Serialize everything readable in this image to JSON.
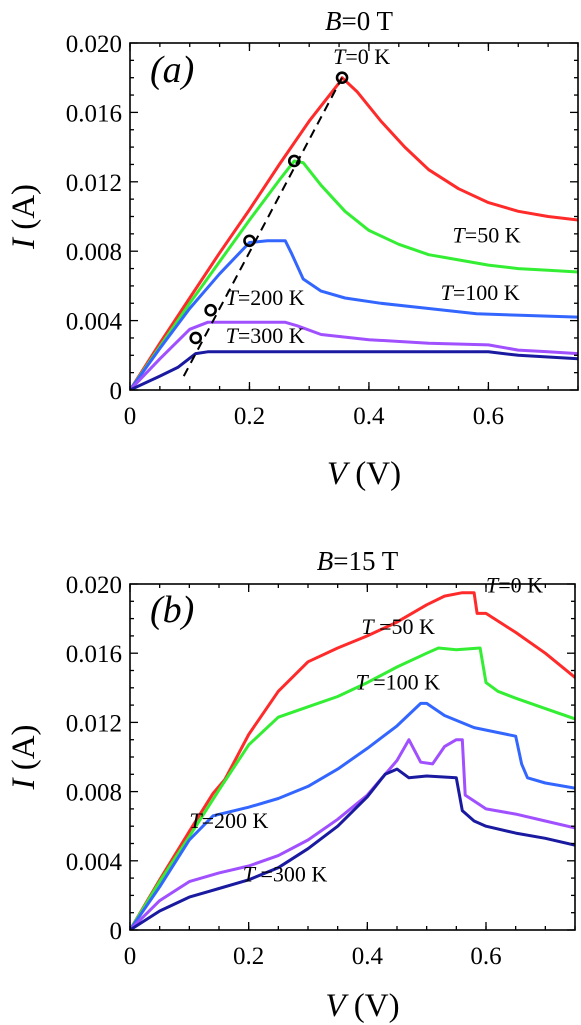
{
  "chart_data": [
    {
      "panel": "(a)",
      "type": "line",
      "title": "B=0 T",
      "title_parts": {
        "symbol": "B",
        "rest": "=0 T"
      },
      "xlabel": "V (V)",
      "xlabel_parts": {
        "symbol": "V",
        "rest": " (V)"
      },
      "ylabel": "I (A)",
      "ylabel_parts": {
        "symbol": "I",
        "rest": " (A)"
      },
      "xlim": [
        0,
        0.75
      ],
      "ylim": [
        0,
        0.02
      ],
      "xticks": [
        0,
        0.2,
        0.4,
        0.6
      ],
      "xtick_labels": [
        "0",
        "0.2",
        "0.4",
        "0.6"
      ],
      "yticks": [
        0,
        0.004,
        0.008,
        0.012,
        0.016,
        0.02
      ],
      "ytick_labels": [
        "0",
        "0.004",
        "0.008",
        "0.012",
        "0.016",
        "0.020"
      ],
      "series": [
        {
          "label": "T=0 K",
          "color": "#ff2a2a",
          "x": [
            0,
            0.05,
            0.1,
            0.15,
            0.2,
            0.25,
            0.3,
            0.35,
            0.355,
            0.38,
            0.42,
            0.46,
            0.5,
            0.55,
            0.6,
            0.65,
            0.7,
            0.75
          ],
          "y": [
            0,
            0.0027,
            0.0053,
            0.0079,
            0.0104,
            0.013,
            0.0155,
            0.0177,
            0.018,
            0.0172,
            0.0155,
            0.014,
            0.0127,
            0.0116,
            0.0108,
            0.0103,
            0.01,
            0.0098
          ]
        },
        {
          "label": "T=50 K",
          "color": "#33ee33",
          "x": [
            0,
            0.05,
            0.1,
            0.15,
            0.2,
            0.25,
            0.275,
            0.29,
            0.32,
            0.36,
            0.4,
            0.45,
            0.5,
            0.55,
            0.6,
            0.65,
            0.7,
            0.75
          ],
          "y": [
            0,
            0.0025,
            0.005,
            0.0074,
            0.0098,
            0.0121,
            0.0132,
            0.0131,
            0.0118,
            0.0103,
            0.0092,
            0.0084,
            0.0078,
            0.0075,
            0.0072,
            0.007,
            0.0069,
            0.0068
          ]
        },
        {
          "label": "T=100 K",
          "color": "#3366ff",
          "x": [
            0,
            0.05,
            0.1,
            0.15,
            0.2,
            0.23,
            0.26,
            0.27,
            0.29,
            0.32,
            0.36,
            0.42,
            0.5,
            0.58,
            0.66,
            0.75
          ],
          "y": [
            0,
            0.0024,
            0.0047,
            0.0067,
            0.0085,
            0.0086,
            0.0086,
            0.0079,
            0.0064,
            0.0057,
            0.0053,
            0.005,
            0.0047,
            0.0044,
            0.0043,
            0.0042
          ]
        },
        {
          "label": "T=200 K",
          "color": "#a050ff",
          "x": [
            0,
            0.05,
            0.1,
            0.13,
            0.15,
            0.2,
            0.26,
            0.28,
            0.32,
            0.4,
            0.5,
            0.6,
            0.65,
            0.7,
            0.75
          ],
          "y": [
            0,
            0.0018,
            0.0035,
            0.0039,
            0.0039,
            0.0039,
            0.0039,
            0.0037,
            0.0032,
            0.0029,
            0.0027,
            0.0026,
            0.0023,
            0.0022,
            0.0021
          ]
        },
        {
          "label": "T=300 K",
          "color": "#1a1aa0",
          "x": [
            0,
            0.05,
            0.08,
            0.11,
            0.13,
            0.2,
            0.3,
            0.4,
            0.5,
            0.6,
            0.65,
            0.7,
            0.75
          ],
          "y": [
            0,
            0.0008,
            0.0013,
            0.0021,
            0.0022,
            0.0022,
            0.0022,
            0.0022,
            0.0022,
            0.0022,
            0.002,
            0.0019,
            0.0018
          ]
        }
      ],
      "guide": {
        "x": [
          0.09,
          0.355
        ],
        "y": [
          0.0008,
          0.018
        ],
        "markers": [
          {
            "x": 0.355,
            "y": 0.018
          },
          {
            "x": 0.275,
            "y": 0.0132
          },
          {
            "x": 0.2,
            "y": 0.0086
          },
          {
            "x": 0.135,
            "y": 0.0046
          },
          {
            "x": 0.11,
            "y": 0.003
          }
        ]
      },
      "annotations": [
        {
          "series": 0,
          "symbol": "T",
          "rest": "=0 K",
          "x": 0.34,
          "y": 0.0188
        },
        {
          "series": 1,
          "symbol": "T",
          "rest": "=50 K",
          "x": 0.54,
          "y": 0.0085
        },
        {
          "series": 2,
          "symbol": "T",
          "rest": "=100 K",
          "x": 0.52,
          "y": 0.0052
        },
        {
          "series": 3,
          "symbol": "T",
          "rest": "=200 K",
          "x": 0.16,
          "y": 0.0049
        },
        {
          "series": 4,
          "symbol": "T",
          "rest": "=300 K",
          "x": 0.16,
          "y": 0.0027
        }
      ]
    },
    {
      "panel": "(b)",
      "type": "line",
      "title": "B=15 T",
      "title_parts": {
        "symbol": "B",
        "rest": "=15 T"
      },
      "xlabel": "V (V)",
      "xlabel_parts": {
        "symbol": "V",
        "rest": " (V)"
      },
      "ylabel": "I (A)",
      "ylabel_parts": {
        "symbol": "I",
        "rest": " (A)"
      },
      "xlim": [
        0,
        0.75
      ],
      "ylim": [
        0,
        0.02
      ],
      "xticks": [
        0,
        0.2,
        0.4,
        0.6
      ],
      "xtick_labels": [
        "0",
        "0.2",
        "0.4",
        "0.6"
      ],
      "yticks": [
        0,
        0.004,
        0.008,
        0.012,
        0.016,
        0.02
      ],
      "ytick_labels": [
        "0",
        "0.004",
        "0.008",
        "0.012",
        "0.016",
        "0.020"
      ],
      "series": [
        {
          "label": "T=0 K",
          "color": "#ff2a2a",
          "x": [
            0,
            0.05,
            0.1,
            0.14,
            0.16,
            0.2,
            0.25,
            0.3,
            0.35,
            0.4,
            0.45,
            0.5,
            0.53,
            0.56,
            0.58,
            0.585,
            0.6,
            0.65,
            0.7,
            0.75
          ],
          "y": [
            0,
            0.0029,
            0.0057,
            0.0079,
            0.0087,
            0.0113,
            0.0138,
            0.0155,
            0.0163,
            0.017,
            0.0178,
            0.0188,
            0.0193,
            0.0195,
            0.0195,
            0.0183,
            0.0183,
            0.0172,
            0.016,
            0.0146
          ]
        },
        {
          "label": "T=50 K",
          "color": "#33ee33",
          "x": [
            0,
            0.05,
            0.1,
            0.15,
            0.2,
            0.25,
            0.3,
            0.35,
            0.4,
            0.45,
            0.5,
            0.52,
            0.55,
            0.59,
            0.6,
            0.62,
            0.65,
            0.7,
            0.75
          ],
          "y": [
            0,
            0.0028,
            0.0054,
            0.0081,
            0.0107,
            0.0123,
            0.0129,
            0.0135,
            0.0143,
            0.0152,
            0.016,
            0.0163,
            0.0162,
            0.0163,
            0.0143,
            0.0138,
            0.0134,
            0.0128,
            0.0122
          ]
        },
        {
          "label": "T=100 K",
          "color": "#3366ff",
          "x": [
            0,
            0.05,
            0.1,
            0.14,
            0.2,
            0.25,
            0.3,
            0.35,
            0.4,
            0.45,
            0.49,
            0.5,
            0.53,
            0.58,
            0.65,
            0.66,
            0.67,
            0.7,
            0.75
          ],
          "y": [
            0,
            0.0025,
            0.0052,
            0.0066,
            0.0071,
            0.0076,
            0.0083,
            0.0093,
            0.0105,
            0.0118,
            0.0131,
            0.0131,
            0.0124,
            0.0117,
            0.0112,
            0.0096,
            0.0088,
            0.0085,
            0.0082
          ]
        },
        {
          "label": "T=200 K",
          "color": "#a050ff",
          "x": [
            0,
            0.05,
            0.1,
            0.15,
            0.2,
            0.25,
            0.3,
            0.35,
            0.4,
            0.45,
            0.47,
            0.49,
            0.51,
            0.53,
            0.55,
            0.56,
            0.565,
            0.6,
            0.65,
            0.7,
            0.75
          ],
          "y": [
            0,
            0.0017,
            0.0028,
            0.0033,
            0.0037,
            0.0043,
            0.0052,
            0.0064,
            0.0078,
            0.0098,
            0.011,
            0.0097,
            0.0096,
            0.0106,
            0.011,
            0.011,
            0.0078,
            0.007,
            0.0067,
            0.0063,
            0.0059
          ]
        },
        {
          "label": "T=300 K",
          "color": "#1a1aa0",
          "x": [
            0,
            0.05,
            0.1,
            0.15,
            0.2,
            0.25,
            0.3,
            0.35,
            0.4,
            0.43,
            0.45,
            0.47,
            0.5,
            0.55,
            0.56,
            0.58,
            0.6,
            0.65,
            0.7,
            0.75
          ],
          "y": [
            0,
            0.0011,
            0.0019,
            0.0024,
            0.0029,
            0.0036,
            0.0047,
            0.006,
            0.0077,
            0.009,
            0.0093,
            0.0088,
            0.0089,
            0.0088,
            0.0069,
            0.0063,
            0.006,
            0.0056,
            0.0053,
            0.0049
          ]
        }
      ],
      "guide": null,
      "annotations": [
        {
          "series": 0,
          "symbol": "T",
          "rest": "=0 K",
          "x": 0.6,
          "y": 0.0195
        },
        {
          "series": 1,
          "symbol": "T",
          "rest": " =50 K",
          "x": 0.39,
          "y": 0.0171
        },
        {
          "series": 2,
          "symbol": "T",
          "rest": " =100 K",
          "x": 0.38,
          "y": 0.0139
        },
        {
          "series": 3,
          "symbol": "T",
          "rest": "=200 K",
          "x": 0.1,
          "y": 0.0059
        },
        {
          "series": 4,
          "symbol": "T",
          "rest": " =300 K",
          "x": 0.19,
          "y": 0.0028
        }
      ]
    }
  ]
}
